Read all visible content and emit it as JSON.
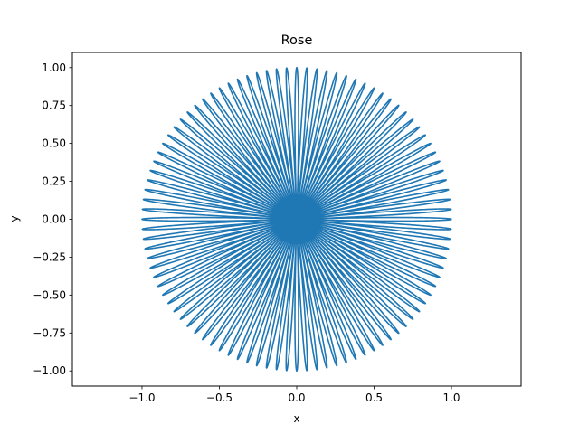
{
  "chart_data": {
    "type": "line",
    "title": "Rose",
    "xlabel": "x",
    "ylabel": "y",
    "xlim": [
      -1.45,
      1.45
    ],
    "ylim": [
      -1.1,
      1.1
    ],
    "xticks": [
      -1.0,
      -0.5,
      0.0,
      0.5,
      1.0
    ],
    "xtick_labels": [
      "−1.0",
      "−0.5",
      "0.0",
      "0.5",
      "1.0"
    ],
    "yticks": [
      -1.0,
      -0.75,
      -0.5,
      -0.25,
      0.0,
      0.25,
      0.5,
      0.75,
      1.0
    ],
    "ytick_labels": [
      "−1.00",
      "−0.75",
      "−0.50",
      "−0.25",
      "0.00",
      "0.25",
      "0.50",
      "0.75",
      "1.00"
    ],
    "grid": false,
    "series": [
      {
        "curve": "rose r = cos(k·θ), dense petals, max radius 1",
        "color": "#1f77b4",
        "petals": 96,
        "r_max": 1.0
      }
    ]
  }
}
